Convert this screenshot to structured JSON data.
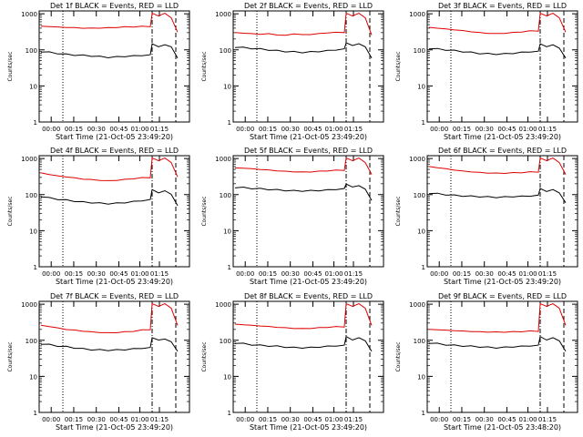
{
  "colors": {
    "events": "#000000",
    "lld": "#e00000",
    "axes": "#000000",
    "background": "#ffffff"
  },
  "chart_data": [
    {
      "type": "line",
      "title": "Det 1f BLACK = Events, RED = LLD",
      "xlabel": "Start Time (21-Oct-05 23:49:20)",
      "ylabel": "Counts/sec",
      "y_scale": "log",
      "ylim": [
        1,
        1200
      ],
      "xticks": [
        "00:00",
        "00:15",
        "00:30",
        "00:45",
        "01:00",
        "01:15"
      ],
      "yticks": [
        "1",
        "10",
        "100",
        "1000"
      ],
      "series": [
        {
          "name": "LLD",
          "color": "red",
          "values": [
            450,
            440,
            430,
            420,
            410,
            400,
            400,
            405,
            410,
            420,
            430,
            440,
            440,
            450,
            1000,
            900,
            1000,
            800,
            300
          ]
        },
        {
          "name": "Events",
          "color": "black",
          "values": [
            90,
            85,
            80,
            75,
            72,
            70,
            68,
            65,
            62,
            64,
            66,
            68,
            70,
            72,
            150,
            120,
            140,
            120,
            60
          ]
        }
      ]
    },
    {
      "type": "line",
      "title": "Det 2f BLACK = Events, RED = LLD",
      "xlabel": "Start Time (21-Oct-05 23:49:20)",
      "ylabel": "Counts/sec",
      "y_scale": "log",
      "ylim": [
        1,
        1200
      ],
      "xticks": [
        "00:00",
        "00:15",
        "00:30",
        "00:45",
        "01:00",
        "01:15"
      ],
      "yticks": [
        "1",
        "10",
        "100",
        "1000"
      ],
      "series": [
        {
          "name": "LLD",
          "color": "red",
          "values": [
            300,
            290,
            280,
            270,
            280,
            260,
            250,
            280,
            260,
            270,
            280,
            300,
            300,
            310,
            1000,
            900,
            1000,
            800,
            250
          ]
        },
        {
          "name": "Events",
          "color": "black",
          "values": [
            120,
            115,
            110,
            105,
            100,
            95,
            90,
            88,
            85,
            88,
            90,
            95,
            100,
            105,
            160,
            130,
            150,
            120,
            60
          ]
        }
      ]
    },
    {
      "type": "line",
      "title": "Det 3f BLACK = Events, RED = LLD",
      "xlabel": "Start Time (21-Oct-05 23:49:20)",
      "ylabel": "Counts/sec",
      "y_scale": "log",
      "ylim": [
        1,
        1200
      ],
      "xticks": [
        "00:00",
        "00:15",
        "00:30",
        "00:45",
        "01:00",
        "01:15"
      ],
      "yticks": [
        "1",
        "10",
        "100",
        "1000"
      ],
      "series": [
        {
          "name": "LLD",
          "color": "red",
          "values": [
            420,
            400,
            380,
            360,
            340,
            320,
            300,
            290,
            280,
            290,
            300,
            320,
            330,
            340,
            1000,
            900,
            1000,
            800,
            300
          ]
        },
        {
          "name": "Events",
          "color": "black",
          "values": [
            110,
            105,
            100,
            95,
            90,
            85,
            80,
            78,
            76,
            78,
            80,
            85,
            88,
            90,
            150,
            120,
            140,
            110,
            60
          ]
        }
      ]
    },
    {
      "type": "line",
      "title": "Det 4f BLACK = Events, RED = LLD",
      "xlabel": "Start Time (21-Oct-05 23:49:20)",
      "ylabel": "Counts/sec",
      "y_scale": "log",
      "ylim": [
        1,
        1200
      ],
      "xticks": [
        "00:00",
        "00:15",
        "00:30",
        "00:45",
        "01:00",
        "01:15"
      ],
      "yticks": [
        "1",
        "10",
        "100",
        "1000"
      ],
      "series": [
        {
          "name": "LLD",
          "color": "red",
          "values": [
            400,
            360,
            330,
            310,
            290,
            270,
            260,
            250,
            240,
            250,
            260,
            280,
            290,
            300,
            1000,
            900,
            1000,
            800,
            300
          ]
        },
        {
          "name": "Events",
          "color": "black",
          "values": [
            90,
            80,
            75,
            70,
            66,
            62,
            60,
            58,
            56,
            58,
            60,
            64,
            68,
            72,
            140,
            110,
            130,
            100,
            50
          ]
        }
      ]
    },
    {
      "type": "line",
      "title": "Det 5f BLACK = Events, RED = LLD",
      "xlabel": "Start Time (21-Oct-05 23:49:20)",
      "ylabel": "Counts/sec",
      "y_scale": "log",
      "ylim": [
        1,
        1200
      ],
      "xticks": [
        "00:00",
        "00:15",
        "00:30",
        "00:45",
        "01:00",
        "01:15"
      ],
      "yticks": [
        "1",
        "10",
        "100",
        "1000"
      ],
      "series": [
        {
          "name": "LLD",
          "color": "red",
          "values": [
            550,
            540,
            520,
            500,
            480,
            460,
            440,
            430,
            420,
            430,
            440,
            460,
            470,
            480,
            1000,
            900,
            1000,
            800,
            350
          ]
        },
        {
          "name": "Events",
          "color": "black",
          "values": [
            160,
            155,
            150,
            145,
            140,
            135,
            130,
            128,
            126,
            128,
            130,
            135,
            140,
            145,
            200,
            160,
            180,
            140,
            70
          ]
        }
      ]
    },
    {
      "type": "line",
      "title": "Det 6f BLACK = Events, RED = LLD",
      "xlabel": "Start Time (21-Oct-05 23:49:20)",
      "ylabel": "Counts/sec",
      "y_scale": "log",
      "ylim": [
        1,
        1200
      ],
      "xticks": [
        "00:00",
        "00:15",
        "00:30",
        "00:45",
        "01:00",
        "01:15"
      ],
      "yticks": [
        "1",
        "10",
        "100",
        "1000"
      ],
      "series": [
        {
          "name": "LLD",
          "color": "red",
          "values": [
            600,
            560,
            520,
            480,
            450,
            430,
            410,
            400,
            390,
            395,
            400,
            410,
            420,
            430,
            1000,
            900,
            1000,
            800,
            350
          ]
        },
        {
          "name": "Events",
          "color": "black",
          "values": [
            110,
            105,
            100,
            95,
            92,
            90,
            88,
            86,
            84,
            86,
            88,
            90,
            92,
            95,
            150,
            120,
            140,
            110,
            60
          ]
        }
      ]
    },
    {
      "type": "line",
      "title": "Det 7f BLACK = Events, RED = LLD",
      "xlabel": "Start Time (21-Oct-05 23:49:20)",
      "ylabel": "Counts/sec",
      "y_scale": "log",
      "ylim": [
        1,
        1200
      ],
      "xticks": [
        "00:00",
        "00:15",
        "00:30",
        "00:45",
        "01:00",
        "01:15"
      ],
      "yticks": [
        "1",
        "10",
        "100",
        "1000"
      ],
      "series": [
        {
          "name": "LLD",
          "color": "red",
          "values": [
            260,
            240,
            220,
            200,
            190,
            180,
            170,
            165,
            160,
            165,
            170,
            180,
            190,
            200,
            1000,
            900,
            1000,
            800,
            250
          ]
        },
        {
          "name": "Events",
          "color": "black",
          "values": [
            80,
            75,
            70,
            66,
            62,
            58,
            55,
            54,
            53,
            54,
            55,
            58,
            60,
            62,
            120,
            100,
            110,
            90,
            50
          ]
        }
      ]
    },
    {
      "type": "line",
      "title": "Det 8f BLACK = Events, RED = LLD",
      "xlabel": "Start Time (21-Oct-05 23:49:20)",
      "ylabel": "Counts/sec",
      "y_scale": "log",
      "ylim": [
        1,
        1200
      ],
      "xticks": [
        "00:00",
        "00:15",
        "00:30",
        "00:45",
        "01:00",
        "01:15"
      ],
      "yticks": [
        "1",
        "10",
        "100",
        "1000"
      ],
      "series": [
        {
          "name": "LLD",
          "color": "red",
          "values": [
            280,
            270,
            260,
            250,
            240,
            230,
            220,
            215,
            210,
            215,
            220,
            230,
            235,
            240,
            1000,
            900,
            1000,
            800,
            250
          ]
        },
        {
          "name": "Events",
          "color": "black",
          "values": [
            85,
            80,
            76,
            72,
            70,
            68,
            65,
            63,
            62,
            63,
            65,
            68,
            70,
            72,
            130,
            100,
            120,
            95,
            50
          ]
        }
      ]
    },
    {
      "type": "line",
      "title": "Det 9f BLACK = Events, RED = LLD",
      "xlabel": "Start Time (21-Oct-05 23:48:20)",
      "ylabel": "Counts/sec",
      "y_scale": "log",
      "ylim": [
        1,
        1200
      ],
      "xticks": [
        "00:00",
        "00:15",
        "00:30",
        "00:45",
        "01:00",
        "01:15"
      ],
      "yticks": [
        "1",
        "10",
        "100",
        "1000"
      ],
      "series": [
        {
          "name": "LLD",
          "color": "red",
          "values": [
            200,
            195,
            190,
            185,
            180,
            175,
            172,
            170,
            168,
            170,
            172,
            175,
            178,
            180,
            1000,
            900,
            1000,
            800,
            250
          ]
        },
        {
          "name": "Events",
          "color": "black",
          "values": [
            85,
            80,
            76,
            72,
            70,
            68,
            66,
            64,
            62,
            64,
            66,
            68,
            70,
            72,
            130,
            100,
            120,
            95,
            50
          ]
        }
      ]
    }
  ]
}
